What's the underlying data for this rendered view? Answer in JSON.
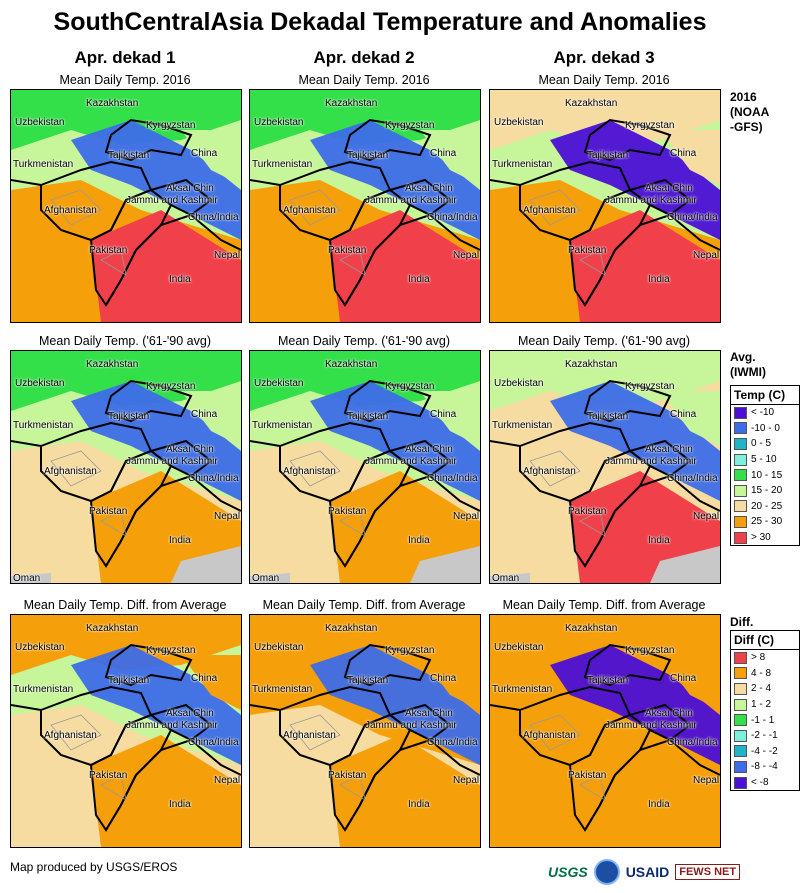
{
  "title": "SouthCentralAsia Dekadal Temperature and Anomalies",
  "columns": [
    "Apr. dekad 1",
    "Apr. dekad 2",
    "Apr. dekad 3"
  ],
  "rows": [
    {
      "subtitle": "Mean Daily Temp. 2016",
      "side_label": "2016\n(NOAA\n-GFS)"
    },
    {
      "subtitle": "Mean Daily Temp. ('61-'90 avg)",
      "side_label": "Avg.\n(IWMI)"
    },
    {
      "subtitle": "Mean Daily Temp. Diff. from Average",
      "side_label": "Diff."
    }
  ],
  "place_labels": {
    "kazakhstan": "Kazakhstan",
    "uzbekistan": "Uzbekistan",
    "kyrgyzstan": "Kyrgyzstan",
    "tajikistan": "Tajikistan",
    "china": "China",
    "turkmenistan": "Turkmenistan",
    "aksai_chin": "Aksai Chin",
    "jammu_kashmir": "Jammu and Kashmir",
    "china_india": "China/India",
    "afghanistan": "Afghanistan",
    "pakistan": "Pakistan",
    "nepal": "Nepal",
    "india": "India",
    "oman": "Oman"
  },
  "temp_legend": {
    "title": "Temp (C)",
    "items": [
      {
        "label": "< -10",
        "color": "#4b0fd6"
      },
      {
        "label": "-10 - 0",
        "color": "#3d6de8"
      },
      {
        "label": "0 - 5",
        "color": "#1fb4c9"
      },
      {
        "label": "5 - 10",
        "color": "#7ef0dc"
      },
      {
        "label": "10 - 15",
        "color": "#33e04a"
      },
      {
        "label": "15 - 20",
        "color": "#c7f59a"
      },
      {
        "label": "20 - 25",
        "color": "#f7dca2"
      },
      {
        "label": "25 - 30",
        "color": "#f5a00a"
      },
      {
        "label": "> 30",
        "color": "#f0414b"
      }
    ]
  },
  "diff_legend": {
    "title": "Diff (C)",
    "items": [
      {
        "label": "> 8",
        "color": "#f0414b"
      },
      {
        "label": "4 - 8",
        "color": "#f5a00a"
      },
      {
        "label": "2 - 4",
        "color": "#f7dca2"
      },
      {
        "label": "1 - 2",
        "color": "#c7f59a"
      },
      {
        "label": "-1 - 1",
        "color": "#33e04a"
      },
      {
        "label": "-2 - -1",
        "color": "#7ef0dc"
      },
      {
        "label": "-4 - -2",
        "color": "#1fb4c9"
      },
      {
        "label": "-8 - -4",
        "color": "#3d6de8"
      },
      {
        "label": "< -8",
        "color": "#4b0fd6"
      }
    ]
  },
  "footer": {
    "credit": "Map produced by USGS/EROS"
  },
  "logos": {
    "usgs": "USGS",
    "usaid": "USAID",
    "fews": "FEWS NET"
  }
}
